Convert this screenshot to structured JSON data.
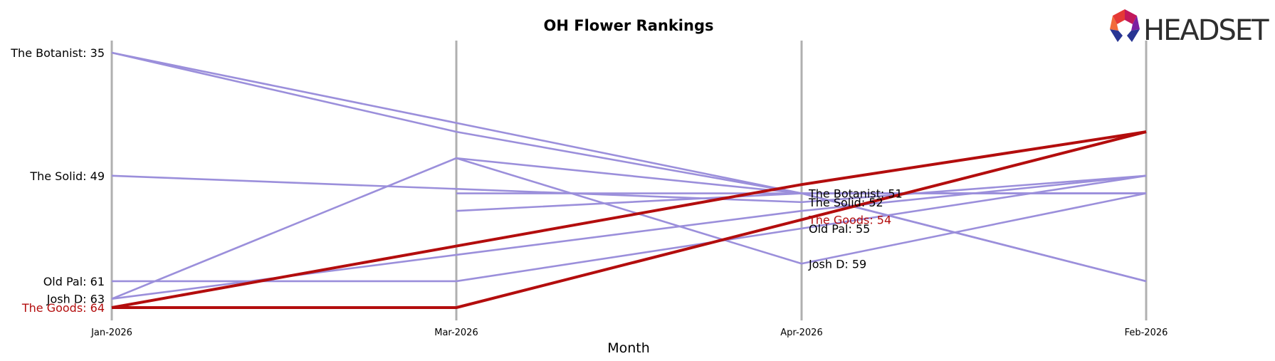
{
  "chart_data": {
    "type": "line",
    "title": "OH Flower Rankings",
    "xlabel": "Month",
    "ylabel": "",
    "categories": [
      "Jan-2026",
      "Mar-2026",
      "Apr-2026",
      "Feb-2026"
    ],
    "y_inverted": true,
    "ylim": [
      33,
      65
    ],
    "grid": false,
    "series": [
      {
        "name": "The Botanist",
        "values": [
          35,
          null,
          51,
          51
        ],
        "color": "#9b8fdb",
        "highlight": false
      },
      {
        "name": "The Solid",
        "values": [
          49,
          null,
          52,
          49
        ],
        "color": "#9b8fdb",
        "highlight": false
      },
      {
        "name": "Old Pal",
        "values": [
          61,
          61,
          55,
          49
        ],
        "color": "#9b8fdb",
        "highlight": false
      },
      {
        "name": "Josh D",
        "values": [
          63,
          47,
          59,
          51
        ],
        "color": "#9b8fdb",
        "highlight": false
      },
      {
        "name": "The Goods",
        "values": [
          64,
          64,
          54,
          44
        ],
        "color": "#b30d0d",
        "highlight": true
      },
      {
        "values": [
          null,
          53,
          51,
          61
        ],
        "color": "#9b8fdb",
        "highlight": false
      },
      {
        "values": [
          null,
          47,
          51,
          51
        ],
        "color": "#9b8fdb",
        "highlight": false
      },
      {
        "values": [
          null,
          51,
          51,
          51
        ],
        "color": "#9b8fdb",
        "highlight": false
      },
      {
        "values": [
          35,
          44,
          51,
          61
        ],
        "color": "#9b8fdb",
        "highlight": false
      },
      {
        "values": [
          63,
          58,
          53,
          49
        ],
        "color": "#9b8fdb",
        "highlight": false
      },
      {
        "values": [
          64,
          57,
          50,
          44
        ],
        "color": "#b30d0d",
        "highlight": true
      }
    ],
    "left_labels": [
      {
        "text": "The Botanist: 35",
        "rank": 35,
        "color": "#000000"
      },
      {
        "text": "The Solid: 49",
        "rank": 49,
        "color": "#000000"
      },
      {
        "text": "Old Pal: 61",
        "rank": 61,
        "color": "#000000"
      },
      {
        "text": "Josh D: 63",
        "rank": 63,
        "color": "#000000"
      },
      {
        "text": "The Goods: 64",
        "rank": 64,
        "color": "#b30d0d"
      }
    ],
    "right_labels": [
      {
        "text": "The Botanist: 51",
        "rank": 51,
        "color": "#000000"
      },
      {
        "text": "The Solid: 52",
        "rank": 52,
        "color": "#000000"
      },
      {
        "text": "The Goods: 54",
        "rank": 54,
        "color": "#b30d0d"
      },
      {
        "text": "Old Pal: 55",
        "rank": 55,
        "color": "#000000"
      },
      {
        "text": "Josh D: 59",
        "rank": 59,
        "color": "#000000"
      }
    ]
  },
  "logo": {
    "text": "HEADSET",
    "colors": [
      "#f26b3a",
      "#c2185b",
      "#7b1fa2",
      "#283593"
    ]
  }
}
